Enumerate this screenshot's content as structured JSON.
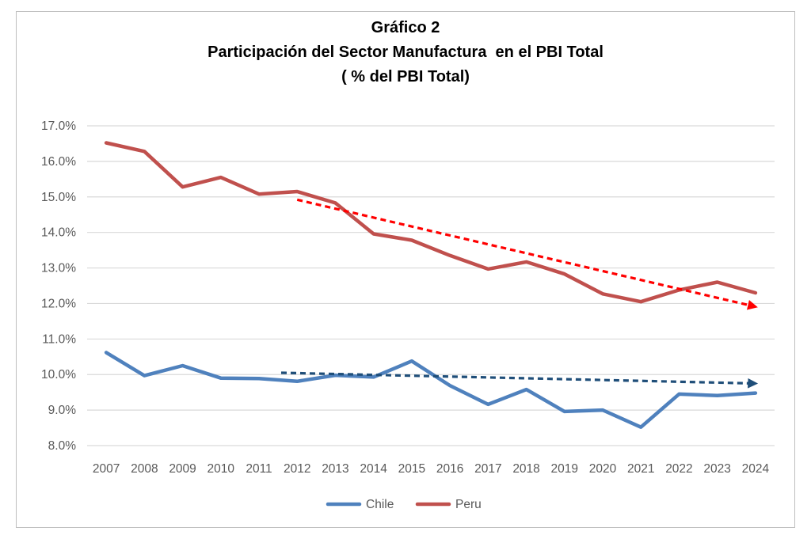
{
  "chart_data": {
    "type": "line",
    "title": "Gráfico 2",
    "subtitle": "Participación del Sector Manufactura  en el PBI Total",
    "subtitle2": "( % del PBI Total)",
    "categories": [
      "2007",
      "2008",
      "2009",
      "2010",
      "2011",
      "2012",
      "2013",
      "2014",
      "2015",
      "2016",
      "2017",
      "2018",
      "2019",
      "2020",
      "2021",
      "2022",
      "2023",
      "2024"
    ],
    "ylim": [
      8.0,
      17.0
    ],
    "yticks": [
      8.0,
      9.0,
      10.0,
      11.0,
      12.0,
      13.0,
      14.0,
      15.0,
      16.0,
      17.0
    ],
    "ytick_labels": [
      "8.0%",
      "9.0%",
      "10.0%",
      "11.0%",
      "12.0%",
      "13.0%",
      "14.0%",
      "15.0%",
      "16.0%",
      "17.0%"
    ],
    "grid": true,
    "legend_position": "bottom",
    "series": [
      {
        "name": "Chile",
        "color": "#4f81bd",
        "values": [
          10.62,
          9.97,
          10.25,
          9.9,
          9.89,
          9.81,
          9.98,
          9.93,
          10.38,
          9.69,
          9.16,
          9.58,
          8.96,
          9.0,
          8.52,
          9.45,
          9.41,
          9.48
        ]
      },
      {
        "name": "Peru",
        "color": "#c0504d",
        "values": [
          16.52,
          16.28,
          15.28,
          15.55,
          15.08,
          15.15,
          14.83,
          13.96,
          13.78,
          13.35,
          12.97,
          13.17,
          12.83,
          12.27,
          12.05,
          12.38,
          12.6,
          12.3
        ]
      }
    ],
    "trendlines": [
      {
        "series": "Peru",
        "color": "#ff0000",
        "style": "dashed-arrow",
        "from": {
          "x": "2012",
          "y": 14.92
        },
        "to": {
          "x": "2024",
          "y": 11.92
        }
      },
      {
        "series": "Chile",
        "color": "#1f4e79",
        "style": "dashed-arrow",
        "from": {
          "x": "2011",
          "y": 10.05
        },
        "to": {
          "x": "2024",
          "y": 9.75
        }
      }
    ]
  }
}
